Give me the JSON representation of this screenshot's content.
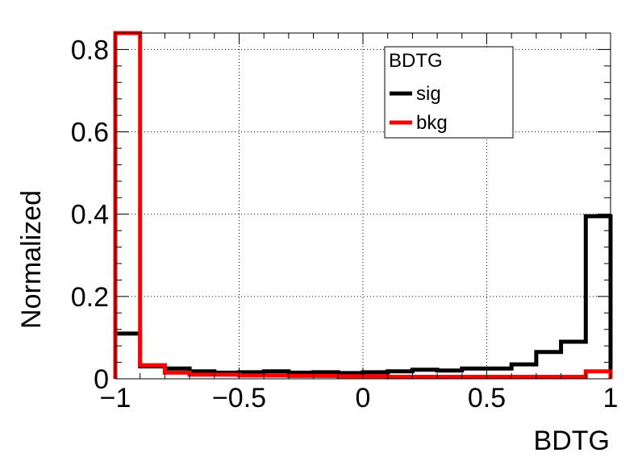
{
  "chart_data": {
    "type": "line",
    "style": "step-histogram",
    "xlabel": "BDTG",
    "ylabel": "Normalized",
    "xlim": [
      -1,
      1
    ],
    "ylim": [
      0,
      0.84
    ],
    "grid": true,
    "x_ticks": [
      -1,
      -0.5,
      0,
      0.5,
      1
    ],
    "x_tick_labels": [
      "−1",
      "−0.5",
      "0",
      "0.5",
      "1"
    ],
    "y_ticks": [
      0,
      0.2,
      0.4,
      0.6,
      0.8
    ],
    "y_tick_labels": [
      "0",
      "0.2",
      "0.4",
      "0.6",
      "0.8"
    ],
    "legend": {
      "title": "BDTG",
      "placement": "top-right",
      "entries": [
        "sig",
        "bkg"
      ]
    },
    "bin_edges": [
      -1,
      -0.9,
      -0.8,
      -0.7,
      -0.6,
      -0.5,
      -0.4,
      -0.3,
      -0.2,
      -0.1,
      0,
      0.1,
      0.2,
      0.3,
      0.4,
      0.5,
      0.6,
      0.7,
      0.8,
      0.9,
      1
    ],
    "series": [
      {
        "name": "sig",
        "color": "#000000",
        "values": [
          0.11,
          0.03,
          0.025,
          0.018,
          0.015,
          0.016,
          0.018,
          0.015,
          0.016,
          0.014,
          0.016,
          0.018,
          0.022,
          0.02,
          0.025,
          0.025,
          0.035,
          0.065,
          0.09,
          0.395
        ]
      },
      {
        "name": "bkg",
        "color": "#ff0000",
        "values": [
          0.84,
          0.033,
          0.015,
          0.01,
          0.01,
          0.008,
          0.008,
          0.007,
          0.007,
          0.006,
          0.006,
          0.005,
          0.005,
          0.005,
          0.005,
          0.005,
          0.005,
          0.005,
          0.005,
          0.018
        ]
      }
    ]
  }
}
